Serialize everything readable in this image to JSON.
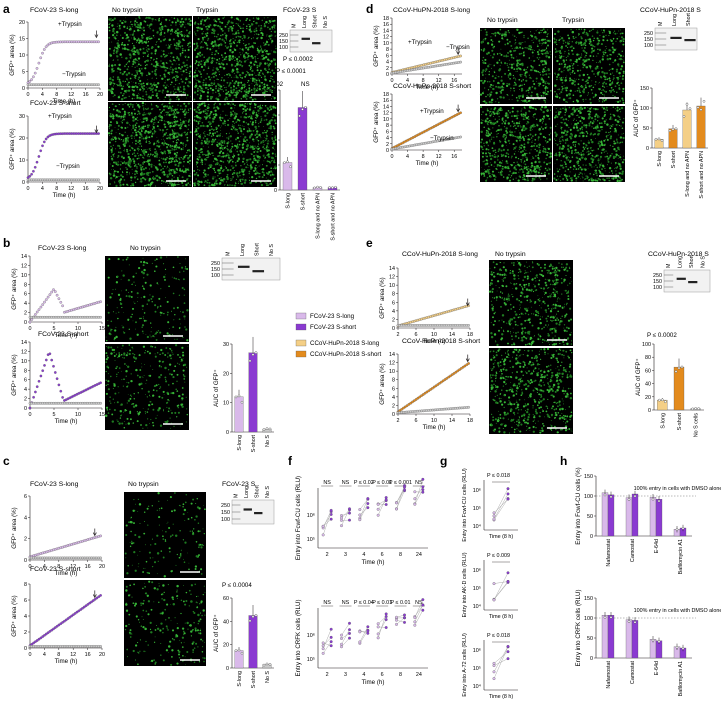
{
  "panel_labels": [
    "a",
    "b",
    "c",
    "d",
    "e",
    "f",
    "g",
    "h"
  ],
  "colors": {
    "fcov_long": "#d9b9ea",
    "fcov_short": "#8a3ad1",
    "ccov_long": "#f4cf86",
    "ccov_short": "#e38b1d",
    "control": "#9a9a9a",
    "scale_bar": "#ffffff",
    "fluor": "#1e7a20"
  },
  "a": {
    "curve1_title": "FCoV-23 S-long",
    "curve2_title": "FCoV-23 S-short",
    "ylabel": "GFP⁺ area (%)",
    "xlabel": "Time (h)",
    "plus_trypsin": "+Trypsin",
    "minus_trypsin": "−Trypsin",
    "img_no_trypsin": "No trypsin",
    "img_trypsin": "Trypsin",
    "blot_title": "FCoV-23 S",
    "blot_lanes": [
      "M",
      "Long",
      "Short",
      "No S"
    ],
    "blot_marks": [
      "250",
      "150",
      "100"
    ],
    "p1": "P ≤ 0.0002",
    "p2": "P ≤ 0.0001",
    "p3": "P = 0.02",
    "ns": "NS",
    "bar_ylabel": "AUC of GFP⁺",
    "bar_cats": [
      "S-long",
      "S-short",
      "S-long and no APN",
      "S-short and no APN"
    ]
  },
  "b": {
    "curve1_title": "FCoV-23 S-long",
    "curve2_title": "FCoV-23 S-short",
    "ylabel": "GFP⁺ area (%)",
    "xlabel": "Time (h)",
    "img_title": "No trypsin",
    "blot_lanes": [
      "M",
      "Long",
      "Short",
      "No S"
    ],
    "blot_marks": [
      "250",
      "150",
      "100"
    ],
    "bar_ylabel": "AUC of GFP⁺",
    "bar_cats": [
      "S-long",
      "S-short",
      "No S"
    ],
    "legend": [
      "FCoV-23 S-long",
      "FCoV-23 S-short",
      "CCoV-HuPn-2018 S-long",
      "CCoV-HuPn-2018 S-short"
    ]
  },
  "c": {
    "curve1_title": "FCoV-23 S-long",
    "curve2_title": "FCoV-23 S-short",
    "ylabel": "GFP⁺ area (%)",
    "xlabel": "Time (h)",
    "img_title": "No trypsin",
    "blot_title": "FCoV-23 S",
    "blot_lanes": [
      "M",
      "Long",
      "Short",
      "No S"
    ],
    "blot_marks": [
      "250",
      "150",
      "100"
    ],
    "p": "P ≤ 0.0004",
    "bar_ylabel": "AUC of GFP⁺",
    "bar_cats": [
      "S-long",
      "S-short",
      "No S"
    ]
  },
  "d": {
    "curve1_title": "CCoV-HuPN-2018 S-long",
    "curve2_title": "CCoV-HuPn-2018 S-short",
    "ylabel": "GFP⁺ area (%)",
    "xlabel": "Time (h)",
    "plus_trypsin": "+Trypsin",
    "minus_trypsin": "−Trypsin",
    "img_no_trypsin": "No trypsin",
    "img_trypsin": "Trypsin",
    "blot_title": "CCoV-HuPn-2018 S",
    "blot_lanes": [
      "M",
      "Long",
      "Short"
    ],
    "blot_marks": [
      "250",
      "150",
      "100"
    ],
    "bar_ylabel": "AUC of GFP⁺",
    "bar_cats": [
      "S-long",
      "S-short",
      "S-long and no APN",
      "S-short and no APN"
    ]
  },
  "e": {
    "curve1_title": "CCoV-HuPn-2018 S-long",
    "curve2_title": "CCoV-HuPn-2018 S-short",
    "ylabel": "GFP⁺ area (%)",
    "xlabel": "Time (h)",
    "img_title": "No trypsin",
    "blot_title": "CCoV-HuPn-2018 S",
    "blot_lanes": [
      "M",
      "Long",
      "Short",
      "No S"
    ],
    "blot_marks": [
      "250",
      "150",
      "100"
    ],
    "p": "P ≤ 0.0002",
    "bar_ylabel": "AUC of GFP⁺",
    "bar_cats": [
      "S-long",
      "S-short",
      "No S cells"
    ]
  },
  "f": {
    "ylabel_top": "Entry into Fcwf-CU cells (RLU)",
    "ylabel_bottom": "Entry into CRFK cells (RLU)",
    "xlabel": "Time (h)",
    "xticks": [
      "2",
      "3",
      "4",
      "6",
      "8",
      "24"
    ],
    "top_sig": [
      "NS",
      "NS",
      "P ≤ 0.02",
      "P ≤ 0.01",
      "P ≤ 0.001",
      "NS"
    ],
    "bottom_sig": [
      "NS",
      "NS",
      "P ≤ 0.04",
      "P ≤ 0.01",
      "P ≤ 0.01",
      "NS"
    ]
  },
  "g": {
    "ylabels": [
      "Entry into Fcwf-CU cells (RLU)",
      "Entry into AK-D cells (RLU)",
      "Entry into A-72 cells (RLU)"
    ],
    "pvals": [
      "P ≤ 0.018",
      "P ≤ 0.009",
      "P ≤ 0.018"
    ],
    "xlabel": "Time (8 h)"
  },
  "h": {
    "ylabel_top": "Entry into Fcwf-CU cells (%)",
    "ylabel_bottom": "Entry into CRFK cells (RLU)",
    "ref_line": "100% entry in cells with DMSO alone",
    "cats": [
      "Nafamostat",
      "Camostat",
      "E-64d",
      "Bafilomycin A1"
    ],
    "chart_data": [
      {
        "type": "bar",
        "categories": [
          "Nafamostat",
          "Camostat",
          "E-64d",
          "Bafilomycin A1"
        ],
        "series": [
          {
            "name": "FCoV-23 S-long",
            "values": [
              108,
              96,
              97,
              17
            ]
          },
          {
            "name": "FCoV-23 S-short",
            "values": [
              103,
              105,
              92,
              20
            ]
          }
        ],
        "ylim": [
          0,
          150
        ]
      },
      {
        "type": "bar",
        "categories": [
          "Nafamostat",
          "Camostat",
          "E-64d",
          "Bafilomycin A1"
        ],
        "series": [
          {
            "name": "FCoV-23 S-long",
            "values": [
              107,
              96,
              47,
              28
            ]
          },
          {
            "name": "FCoV-23 S-short",
            "values": [
              107,
              94,
              43,
              25
            ]
          }
        ],
        "ylim": [
          0,
          150
        ]
      }
    ]
  }
}
